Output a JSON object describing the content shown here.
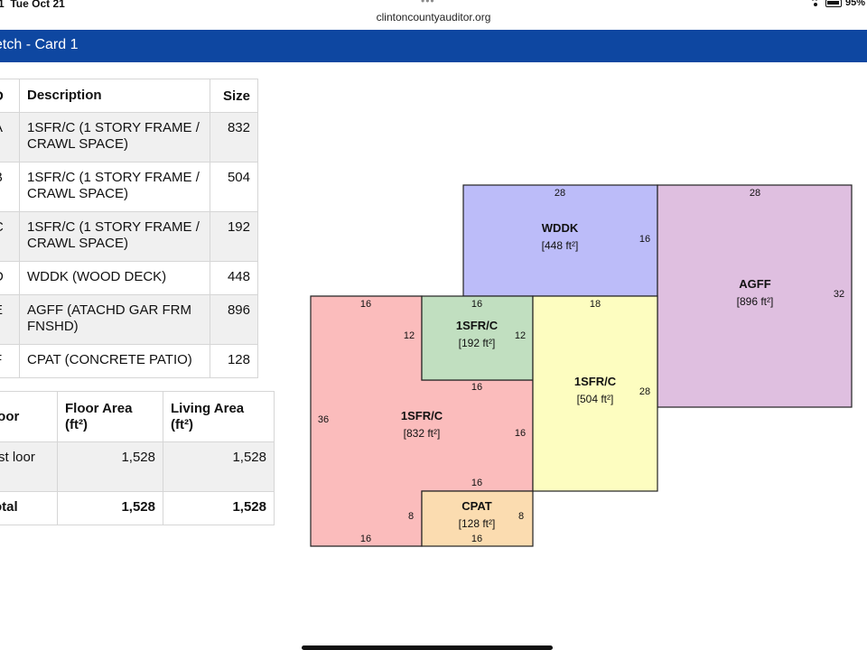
{
  "status_bar": {
    "time": "1  Tue Oct 21",
    "url": "clintoncountyauditor.org",
    "battery": "95%"
  },
  "header": {
    "title": "etch - Card 1"
  },
  "areas_table": {
    "headers": {
      "id": "D",
      "description": "Description",
      "size": "Size"
    },
    "rows": [
      {
        "id": "A",
        "description": "1SFR/C (1 STORY FRAME / CRAWL SPACE)",
        "size": "832"
      },
      {
        "id": "B",
        "description": "1SFR/C (1 STORY FRAME / CRAWL SPACE)",
        "size": "504"
      },
      {
        "id": "C",
        "description": "1SFR/C (1 STORY FRAME / CRAWL SPACE)",
        "size": "192"
      },
      {
        "id": "D",
        "description": "WDDK (WOOD DECK)",
        "size": "448"
      },
      {
        "id": "E",
        "description": "AGFF (ATACHD GAR FRM FNSHD)",
        "size": "896"
      },
      {
        "id": "F",
        "description": "CPAT (CONCRETE PATIO)",
        "size": "128"
      }
    ]
  },
  "summary_table": {
    "headers": {
      "floor": "loor",
      "floor_area": "Floor Area (ft²)",
      "living_area": "Living Area (ft²)"
    },
    "rows": [
      {
        "label": "rst loor",
        "floor_area": "1,528",
        "living_area": "1,528"
      },
      {
        "label": "otal",
        "floor_area": "1,528",
        "living_area": "1,528"
      }
    ]
  },
  "sketch": {
    "areas": [
      {
        "name": "WDDK",
        "area": "[448 ft²]",
        "color": "#bcbcf9"
      },
      {
        "name": "AGFF",
        "area": "[896 ft²]",
        "color": "#dfbfe0"
      },
      {
        "name": "1SFR/C",
        "area": "[832 ft²]",
        "color": "#fbbcbc"
      },
      {
        "name": "1SFR/C",
        "area": "[192 ft²]",
        "color": "#c1dfc0"
      },
      {
        "name": "1SFR/C",
        "area": "[504 ft²]",
        "color": "#fdfdc0"
      },
      {
        "name": "CPAT",
        "area": "[128 ft²]",
        "color": "#fbdcb0"
      }
    ],
    "dimensions": {
      "wddk_top": "28",
      "wddk_right": "16",
      "agff_top": "28",
      "agff_right": "32",
      "sfr504_top": "18",
      "sfr504_right": "28",
      "sfr192_top": "16",
      "sfr192_left": "12",
      "sfr192_right": "12",
      "sfr192_bottom": "16",
      "sfr832_top": "16",
      "sfr832_left": "36",
      "sfr832_right": "16",
      "sfr832_bottom": "16",
      "cpat_top": "16",
      "cpat_left": "8",
      "cpat_right": "8",
      "cpat_bottom": "16"
    }
  }
}
